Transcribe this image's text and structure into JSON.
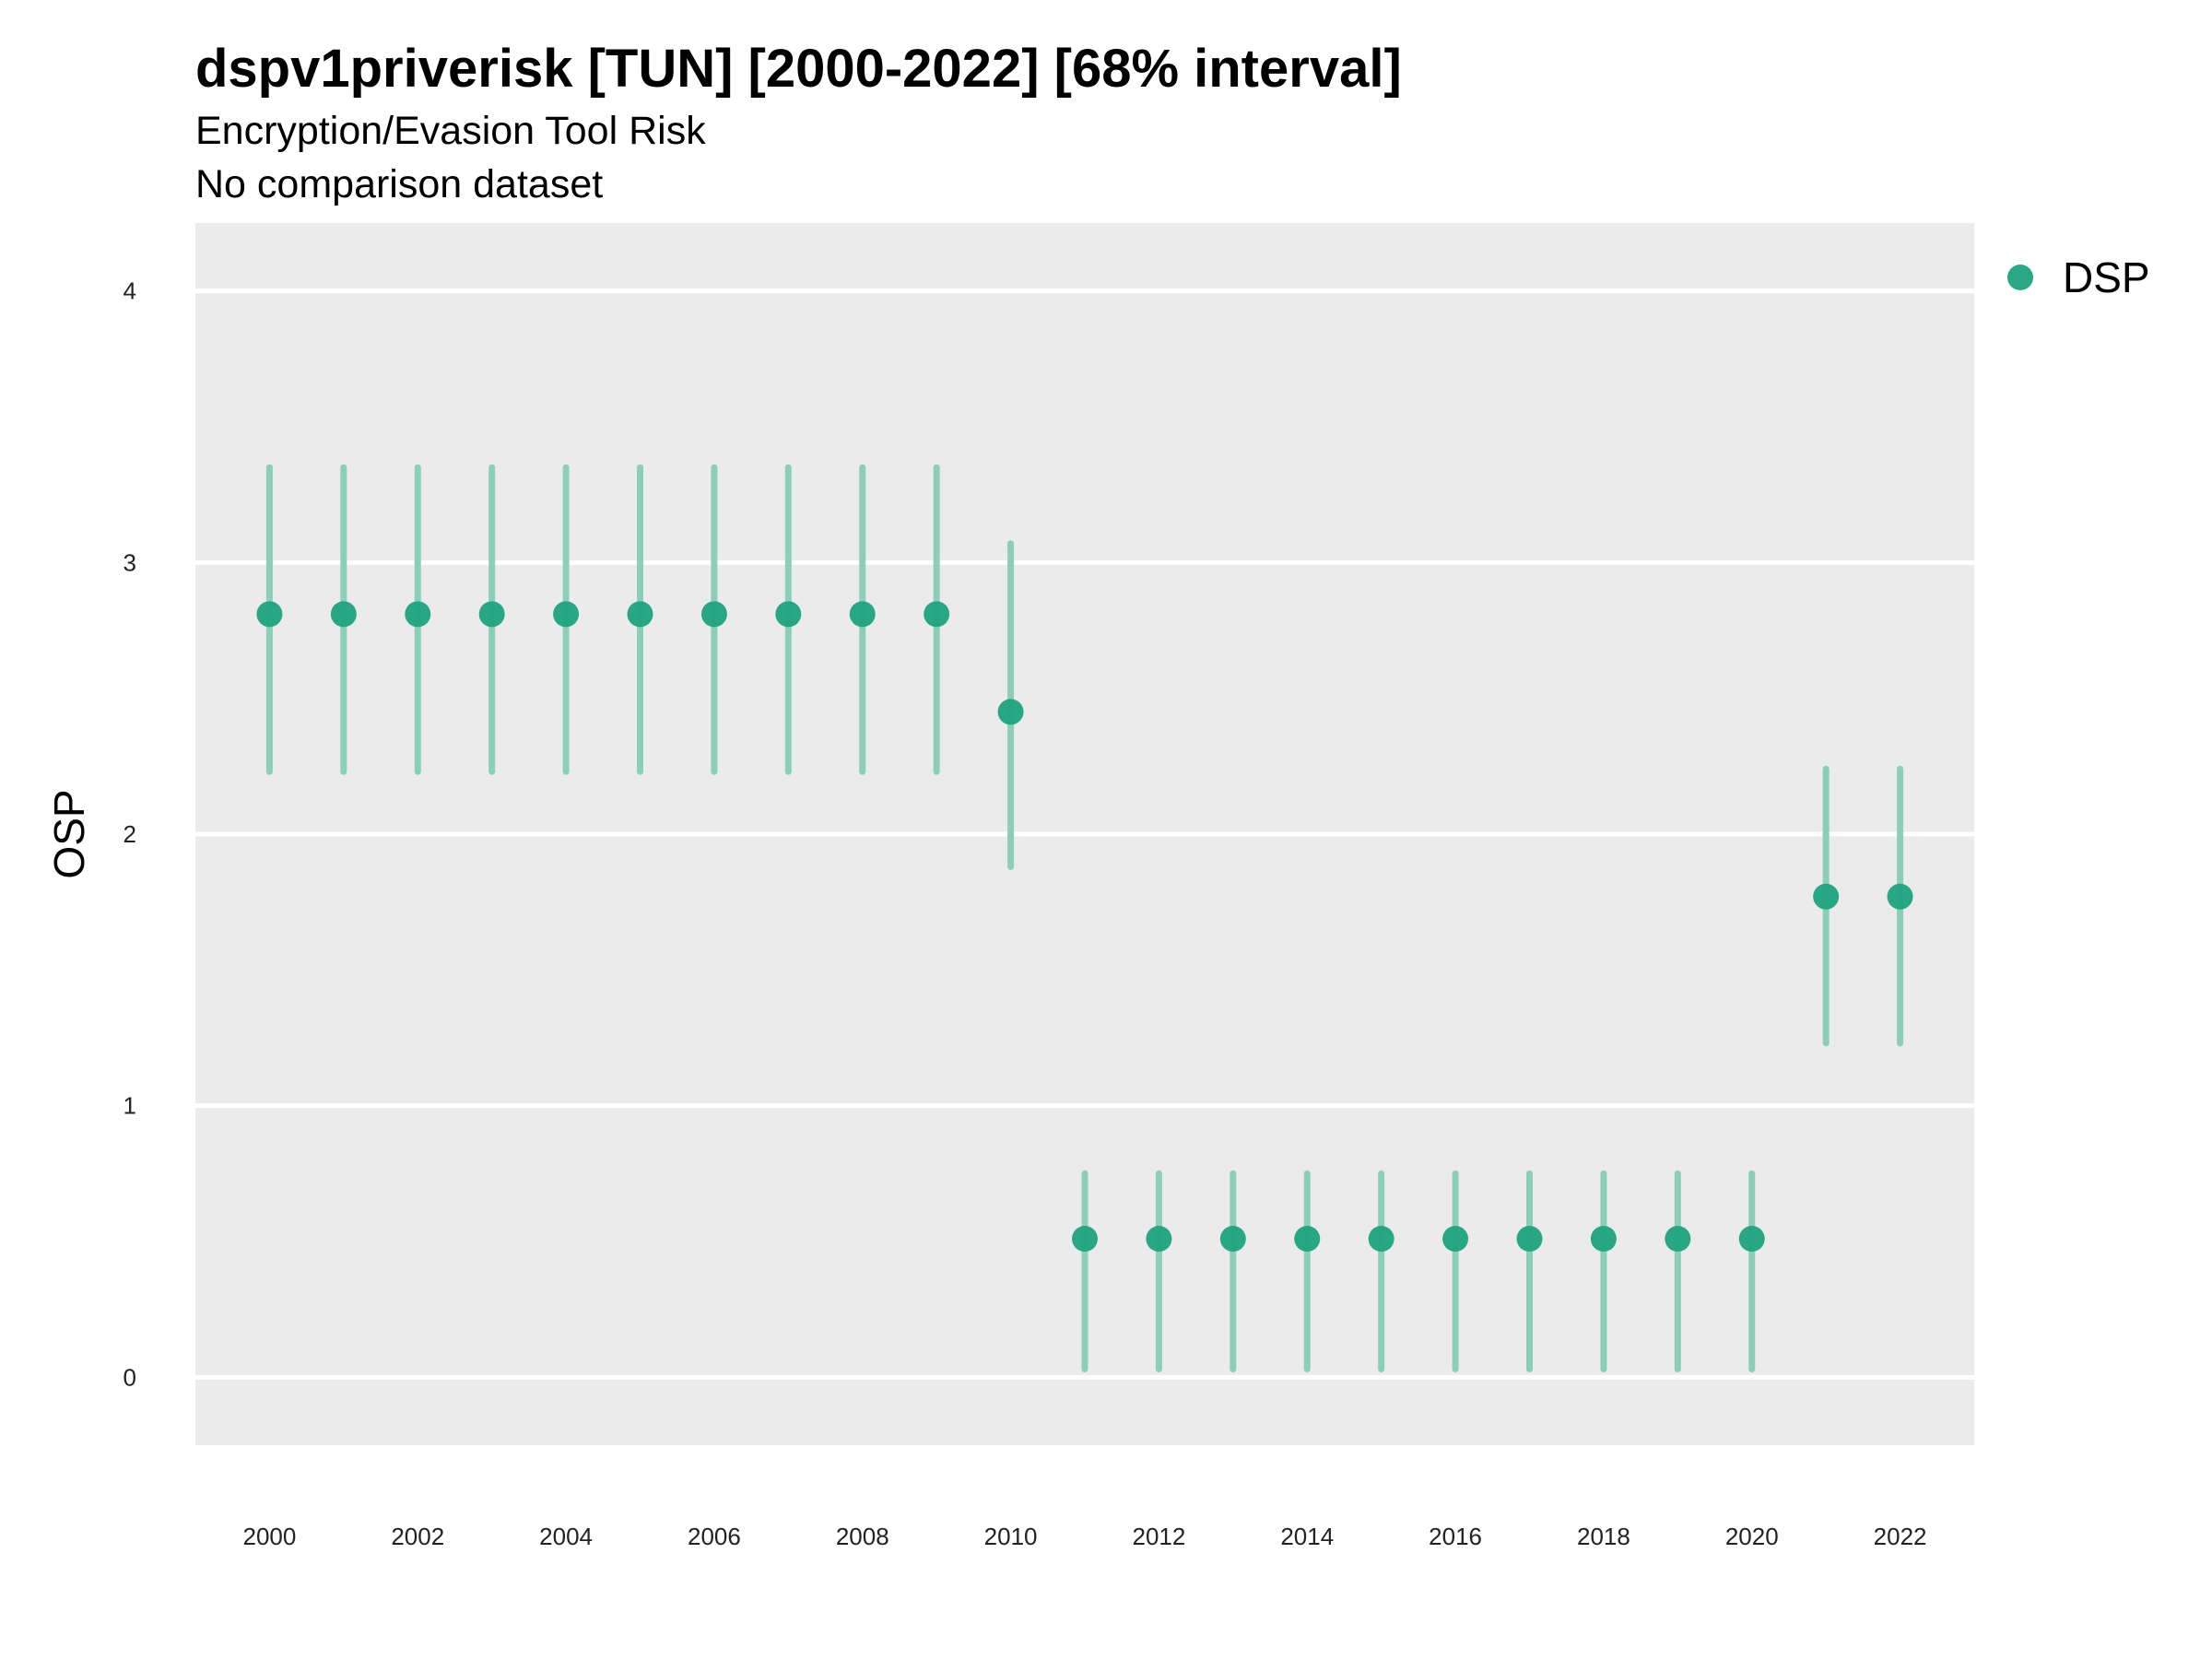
{
  "chart_data": {
    "type": "scatter",
    "title": "dspv1priverisk [TUN] [2000-2022] [68% interval]",
    "subtitle": [
      "Encryption/Evasion Tool Risk",
      "No comparison dataset"
    ],
    "ylabel": "OSP",
    "xlabel": "",
    "ylim": [
      -0.25,
      4.25
    ],
    "xlim": [
      1999.0,
      2023.0
    ],
    "yticks": [
      0,
      1,
      2,
      3,
      4
    ],
    "xticks": [
      2000,
      2002,
      2004,
      2006,
      2008,
      2010,
      2012,
      2014,
      2016,
      2018,
      2020,
      2022
    ],
    "grid": true,
    "legend_position": "right",
    "series": [
      {
        "name": "DSP",
        "color": "#1fa37f",
        "points": [
          {
            "x": 2000,
            "y": 2.81,
            "low": 2.23,
            "high": 3.35
          },
          {
            "x": 2001,
            "y": 2.81,
            "low": 2.23,
            "high": 3.35
          },
          {
            "x": 2002,
            "y": 2.81,
            "low": 2.23,
            "high": 3.35
          },
          {
            "x": 2003,
            "y": 2.81,
            "low": 2.23,
            "high": 3.35
          },
          {
            "x": 2004,
            "y": 2.81,
            "low": 2.23,
            "high": 3.35
          },
          {
            "x": 2005,
            "y": 2.81,
            "low": 2.23,
            "high": 3.35
          },
          {
            "x": 2006,
            "y": 2.81,
            "low": 2.23,
            "high": 3.35
          },
          {
            "x": 2007,
            "y": 2.81,
            "low": 2.23,
            "high": 3.35
          },
          {
            "x": 2008,
            "y": 2.81,
            "low": 2.23,
            "high": 3.35
          },
          {
            "x": 2009,
            "y": 2.81,
            "low": 2.23,
            "high": 3.35
          },
          {
            "x": 2010,
            "y": 2.45,
            "low": 1.88,
            "high": 3.07
          },
          {
            "x": 2011,
            "y": 0.51,
            "low": 0.03,
            "high": 0.75
          },
          {
            "x": 2012,
            "y": 0.51,
            "low": 0.03,
            "high": 0.75
          },
          {
            "x": 2013,
            "y": 0.51,
            "low": 0.03,
            "high": 0.75
          },
          {
            "x": 2014,
            "y": 0.51,
            "low": 0.03,
            "high": 0.75
          },
          {
            "x": 2015,
            "y": 0.51,
            "low": 0.03,
            "high": 0.75
          },
          {
            "x": 2016,
            "y": 0.51,
            "low": 0.03,
            "high": 0.75
          },
          {
            "x": 2017,
            "y": 0.51,
            "low": 0.03,
            "high": 0.75
          },
          {
            "x": 2018,
            "y": 0.51,
            "low": 0.03,
            "high": 0.75
          },
          {
            "x": 2019,
            "y": 0.51,
            "low": 0.03,
            "high": 0.75
          },
          {
            "x": 2020,
            "y": 0.51,
            "low": 0.03,
            "high": 0.75
          },
          {
            "x": 2021,
            "y": 1.77,
            "low": 1.23,
            "high": 2.24
          },
          {
            "x": 2022,
            "y": 1.77,
            "low": 1.23,
            "high": 2.24
          }
        ]
      }
    ]
  },
  "colors": {
    "panel_background": "#ebebeb",
    "grid": "#ffffff",
    "point": "#1fa37f",
    "interval": "#8ccfb9"
  }
}
